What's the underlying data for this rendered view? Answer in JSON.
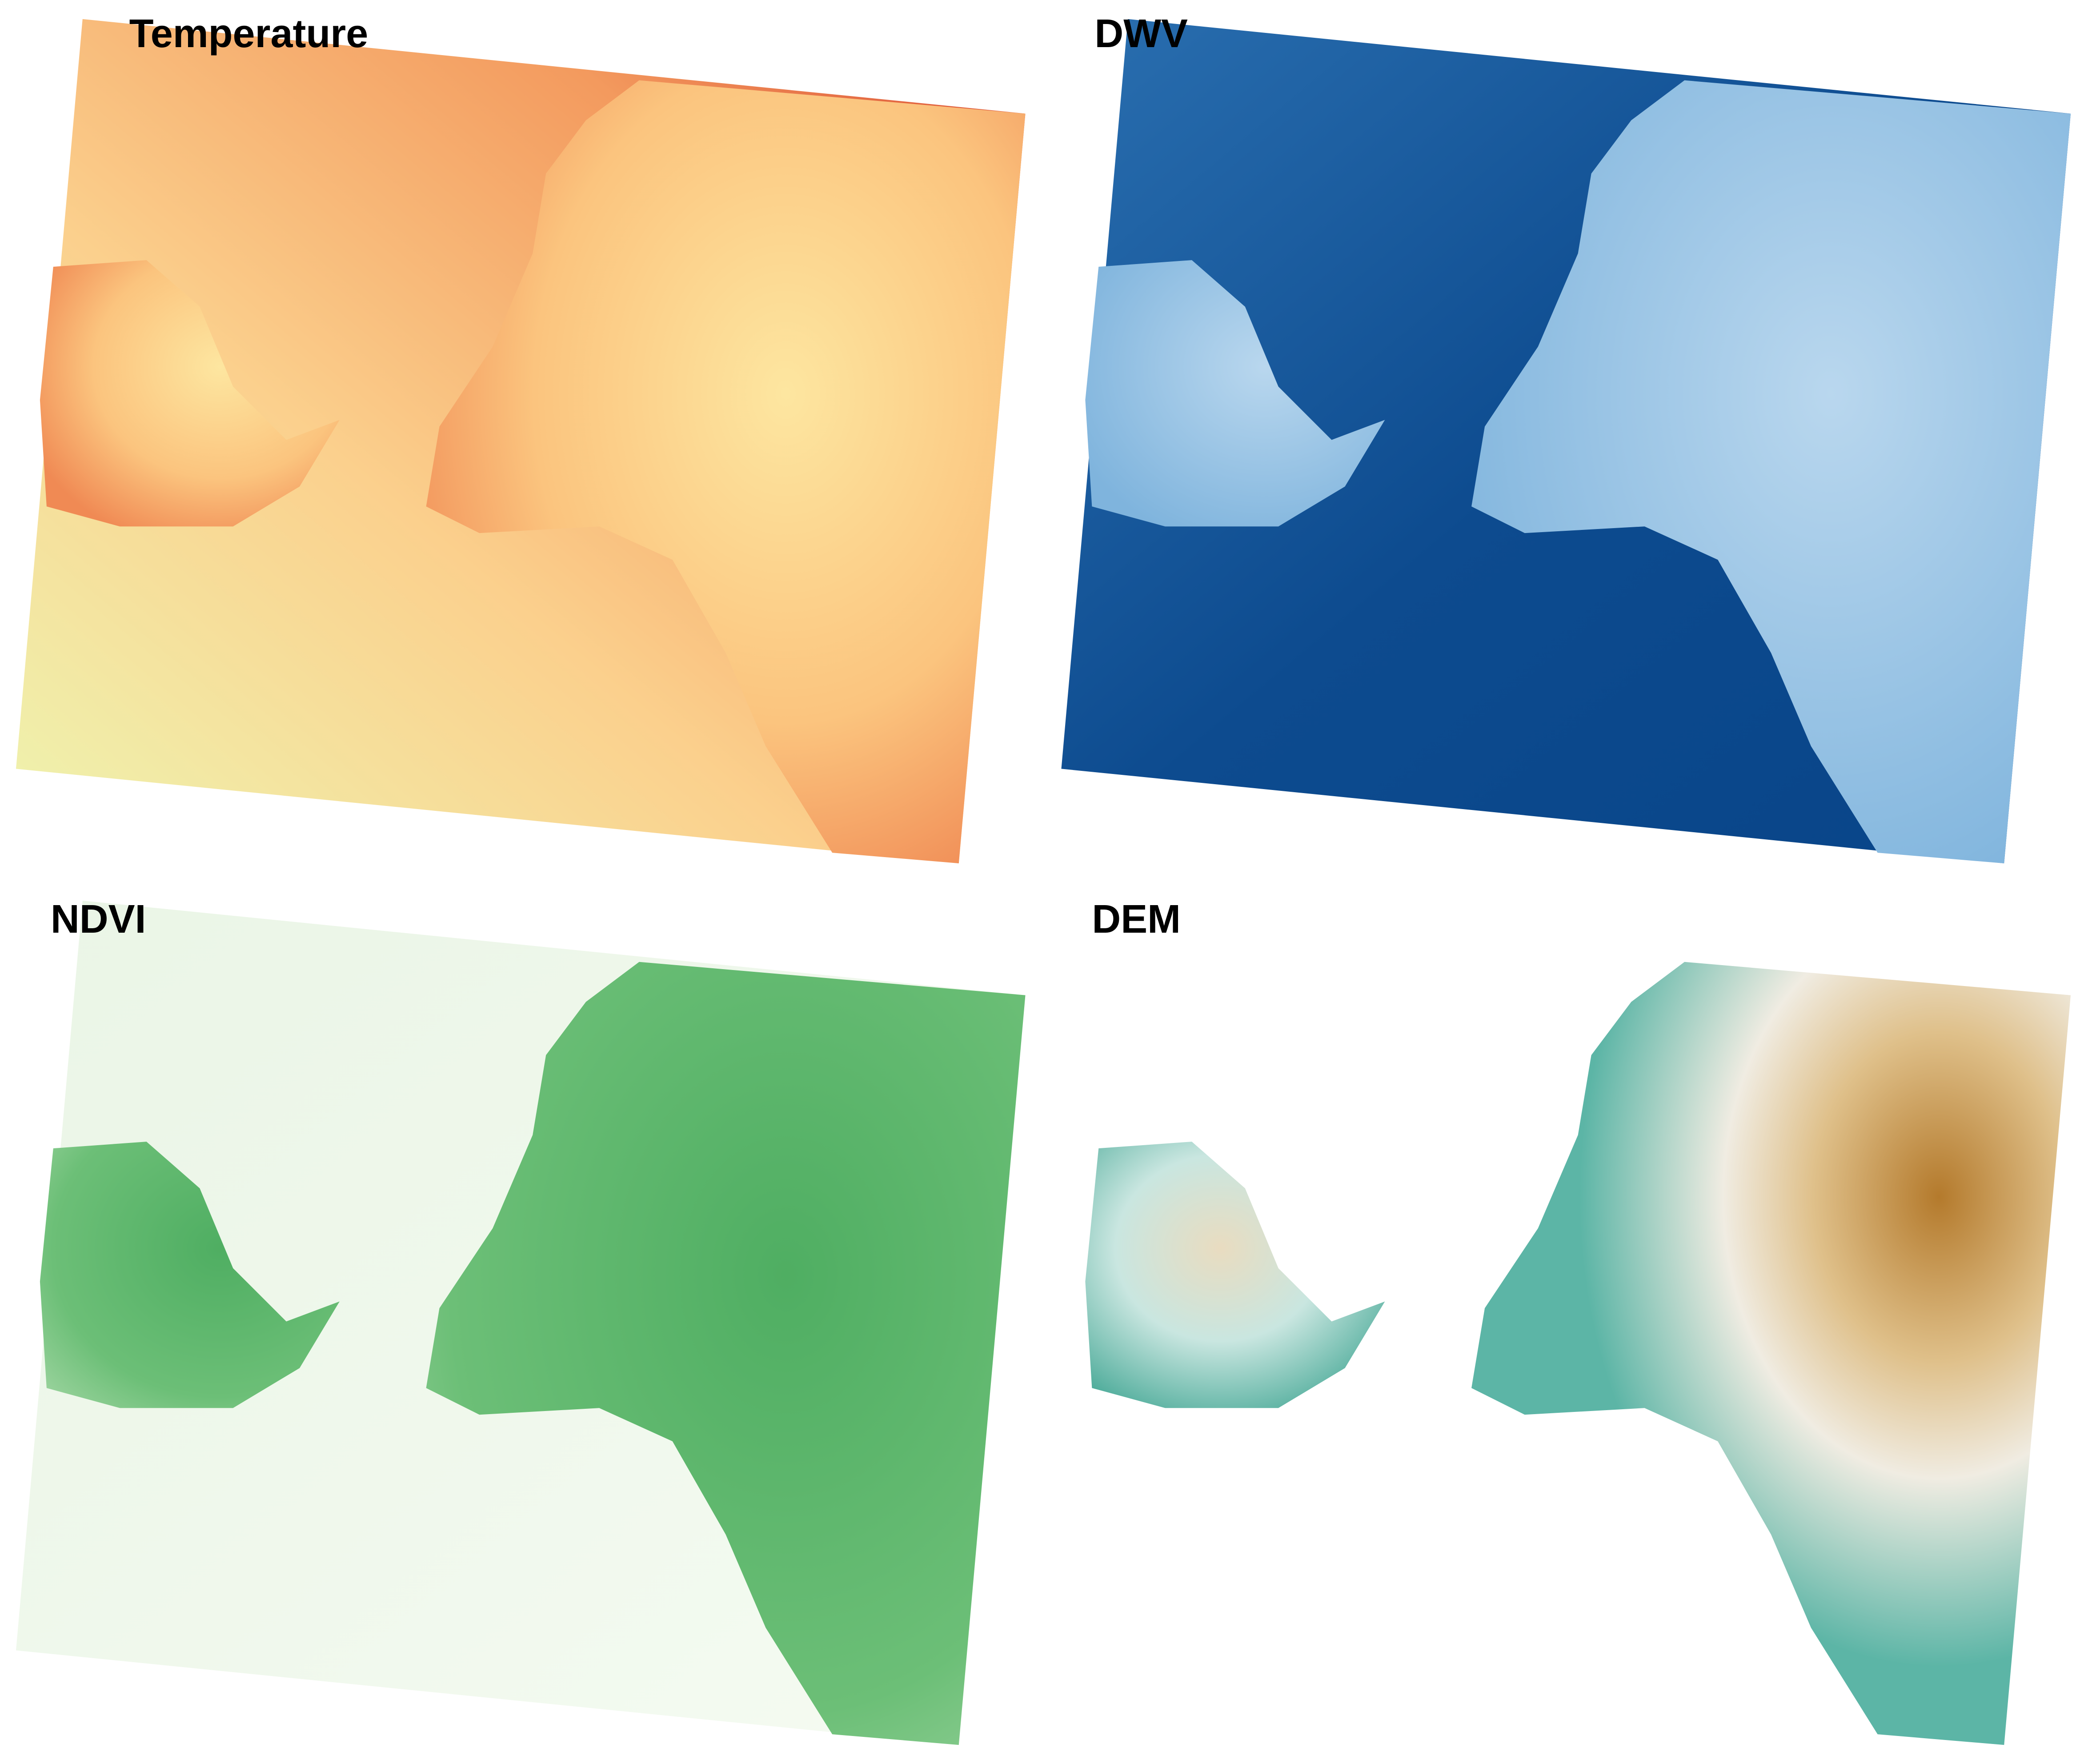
{
  "panels": [
    {
      "title": "Temperature"
    },
    {
      "title": "DWV"
    },
    {
      "title": "NDVI"
    },
    {
      "title": "DEM"
    }
  ]
}
